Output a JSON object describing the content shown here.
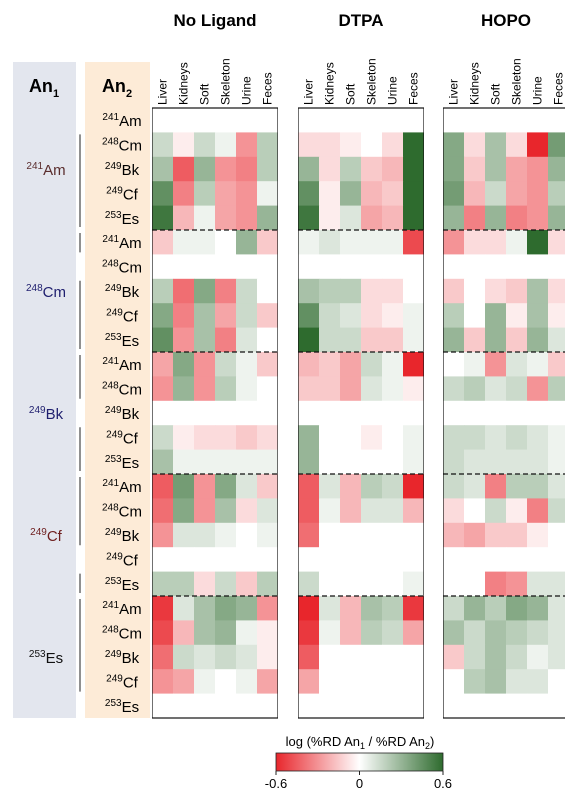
{
  "chart_data": {
    "type": "heatmap",
    "panels": [
      {
        "name": "No Ligand",
        "values": [
          [
            0,
            0,
            0,
            0,
            0,
            0
          ],
          [
            0.15,
            -0.05,
            0.15,
            0.05,
            -0.3,
            0.2
          ],
          [
            0.25,
            -0.45,
            0.3,
            -0.3,
            -0.35,
            0.2
          ],
          [
            0.45,
            -0.35,
            0.2,
            -0.25,
            -0.3,
            0.05
          ],
          [
            0.55,
            -0.2,
            0.05,
            -0.25,
            -0.3,
            0.3
          ],
          [
            -0.15,
            0.05,
            0.05,
            0,
            0.3,
            -0.15
          ],
          [
            0,
            0,
            0,
            0,
            0,
            0
          ],
          [
            0.2,
            -0.4,
            0.35,
            -0.35,
            0.15,
            0
          ],
          [
            0.35,
            -0.35,
            0.25,
            -0.25,
            0.15,
            -0.15
          ],
          [
            0.45,
            -0.3,
            0.25,
            -0.35,
            0.1,
            0
          ],
          [
            -0.25,
            0.35,
            -0.3,
            0.15,
            0.05,
            -0.15
          ],
          [
            -0.3,
            0.3,
            -0.3,
            0.2,
            0.05,
            0
          ],
          [
            0,
            0,
            0,
            0,
            0,
            0
          ],
          [
            0.15,
            -0.05,
            -0.1,
            -0.1,
            -0.15,
            -0.1
          ],
          [
            0.25,
            0.05,
            0.05,
            0.05,
            0.05,
            0.05
          ],
          [
            -0.45,
            0.4,
            -0.3,
            0.35,
            0.1,
            -0.15
          ],
          [
            -0.4,
            0.35,
            -0.3,
            0.25,
            -0.1,
            0.1
          ],
          [
            -0.3,
            0.1,
            0.1,
            0.05,
            0,
            0.05
          ],
          [
            0,
            0,
            0,
            0,
            0,
            0
          ],
          [
            0.2,
            0.2,
            -0.1,
            0.15,
            -0.15,
            0.2
          ],
          [
            -0.55,
            0.1,
            0.25,
            0.35,
            0.3,
            -0.3
          ],
          [
            -0.5,
            -0.2,
            0.25,
            0.3,
            0.05,
            -0.05
          ],
          [
            -0.4,
            0.15,
            0.1,
            0.15,
            0.1,
            -0.05
          ],
          [
            -0.3,
            -0.25,
            0.05,
            0,
            0.05,
            -0.25
          ],
          [
            0,
            0,
            0,
            0,
            0,
            0
          ]
        ]
      },
      {
        "name": "DTPA",
        "values": [
          [
            0,
            0,
            0,
            0,
            0,
            0
          ],
          [
            -0.1,
            -0.1,
            -0.05,
            0,
            -0.1,
            0.6
          ],
          [
            0.3,
            -0.1,
            0.2,
            -0.15,
            -0.2,
            0.6
          ],
          [
            0.45,
            -0.05,
            0.3,
            -0.2,
            -0.15,
            0.6
          ],
          [
            0.55,
            -0.05,
            0.1,
            -0.25,
            -0.2,
            0.6
          ],
          [
            0.05,
            0.1,
            0.05,
            0.05,
            0.05,
            -0.5
          ],
          [
            0,
            0,
            0,
            0,
            0,
            0
          ],
          [
            0.25,
            0.2,
            0.2,
            -0.1,
            -0.1,
            0
          ],
          [
            0.45,
            0.15,
            0.1,
            -0.1,
            -0.05,
            0.05
          ],
          [
            0.6,
            0.15,
            0.15,
            -0.15,
            -0.15,
            0.05
          ],
          [
            -0.2,
            -0.15,
            -0.25,
            0.15,
            0.05,
            -0.6
          ],
          [
            -0.15,
            -0.15,
            -0.25,
            0.1,
            0.05,
            -0.05
          ],
          [
            0,
            0,
            0,
            0,
            0,
            0
          ],
          [
            0.3,
            0,
            0,
            -0.05,
            0,
            0.05
          ],
          [
            0.3,
            0,
            0,
            0,
            0,
            0.05
          ],
          [
            -0.45,
            0.1,
            -0.2,
            0.2,
            0.15,
            -0.6
          ],
          [
            -0.45,
            0.05,
            -0.2,
            0.1,
            0.1,
            -0.2
          ],
          [
            -0.4,
            0,
            0,
            0,
            0,
            0
          ],
          [
            0,
            0,
            0,
            0,
            0,
            0
          ],
          [
            0.15,
            0,
            0,
            0,
            0,
            0.05
          ],
          [
            -0.6,
            0.1,
            -0.2,
            0.25,
            0.2,
            -0.55
          ],
          [
            -0.55,
            0.05,
            -0.2,
            0.2,
            0.15,
            -0.25
          ],
          [
            -0.45,
            0,
            0,
            0,
            0,
            0
          ],
          [
            -0.25,
            0,
            0,
            0,
            0,
            0
          ],
          [
            0,
            0,
            0,
            0,
            0,
            0
          ]
        ]
      },
      {
        "name": "HOPO",
        "values": [
          [
            0,
            0,
            0,
            0,
            0,
            0
          ],
          [
            0.35,
            -0.1,
            0.25,
            -0.1,
            -0.6,
            0.4
          ],
          [
            0.35,
            -0.15,
            0.25,
            -0.25,
            -0.3,
            0.3
          ],
          [
            0.4,
            -0.2,
            0.15,
            -0.25,
            -0.3,
            0.2
          ],
          [
            0.3,
            -0.35,
            0.3,
            -0.35,
            -0.3,
            0.3
          ],
          [
            -0.3,
            -0.1,
            -0.1,
            0.05,
            0.65,
            -0.1
          ],
          [
            0,
            0,
            0,
            0,
            0,
            0
          ],
          [
            -0.15,
            0,
            -0.1,
            -0.15,
            0.25,
            -0.1
          ],
          [
            0.2,
            0,
            0.3,
            -0.05,
            0.25,
            -0.05
          ],
          [
            0.3,
            -0.15,
            0.3,
            -0.15,
            0.3,
            0.1
          ],
          [
            0,
            0.05,
            -0.3,
            0.1,
            0.05,
            -0.15
          ],
          [
            0.15,
            0.2,
            0.1,
            0.15,
            -0.3,
            0.2
          ],
          [
            0,
            0,
            0,
            0,
            0,
            0
          ],
          [
            0.15,
            0.15,
            0.1,
            0.15,
            0.1,
            0.05
          ],
          [
            0.15,
            0.1,
            0.1,
            0.1,
            0.1,
            0.05
          ],
          [
            0.15,
            0.1,
            -0.35,
            0.2,
            0.2,
            0.1
          ],
          [
            -0.1,
            0,
            0.15,
            -0.05,
            -0.35,
            0.15
          ],
          [
            -0.2,
            -0.25,
            -0.15,
            -0.15,
            -0.05,
            0
          ],
          [
            0,
            0,
            0,
            0,
            0,
            0
          ],
          [
            0,
            0,
            -0.35,
            -0.3,
            0.1,
            0.1
          ],
          [
            0.15,
            0.3,
            0.2,
            0.35,
            0.3,
            0.1
          ],
          [
            0.25,
            0.15,
            0.25,
            0.2,
            0.15,
            0.1
          ],
          [
            -0.15,
            0.15,
            0.25,
            0.15,
            0.05,
            0.1
          ],
          [
            0,
            0.2,
            0.25,
            0.1,
            0.1,
            0
          ],
          [
            0,
            0,
            0,
            0,
            0,
            0
          ]
        ]
      }
    ],
    "columns": [
      "Liver",
      "Kidneys",
      "Soft",
      "Skeleton",
      "Urine",
      "Feces"
    ],
    "groups": [
      {
        "sup": "241",
        "sym": "Am",
        "color": "#5a2d2d"
      },
      {
        "sup": "248",
        "sym": "Cm",
        "color": "#1e1e6e"
      },
      {
        "sup": "249",
        "sym": "Bk",
        "color": "#1e1e6e"
      },
      {
        "sup": "249",
        "sym": "Cf",
        "color": "#6e1e1e"
      },
      {
        "sup": "253",
        "sym": "Es",
        "color": "#111111"
      }
    ],
    "an2": [
      {
        "sup": "241",
        "sym": "Am"
      },
      {
        "sup": "248",
        "sym": "Cm"
      },
      {
        "sup": "249",
        "sym": "Bk"
      },
      {
        "sup": "249",
        "sym": "Cf"
      },
      {
        "sup": "253",
        "sym": "Es"
      }
    ],
    "header_an1": {
      "main": "An",
      "sub": "1"
    },
    "header_an2": {
      "main": "An",
      "sub": "2"
    },
    "colorbar": {
      "title_prefix": "log (%RD An",
      "title_sub1": "1",
      "title_mid": " / %RD An",
      "title_sub2": "2",
      "title_suffix": ")",
      "ticks": [
        "-0.6",
        "0",
        "0.6"
      ],
      "vmin": -0.6,
      "vmax": 0.6,
      "colors": {
        "neg": "#e8262c",
        "mid": "#ffffff",
        "pos": "#2e6b2e"
      }
    }
  }
}
